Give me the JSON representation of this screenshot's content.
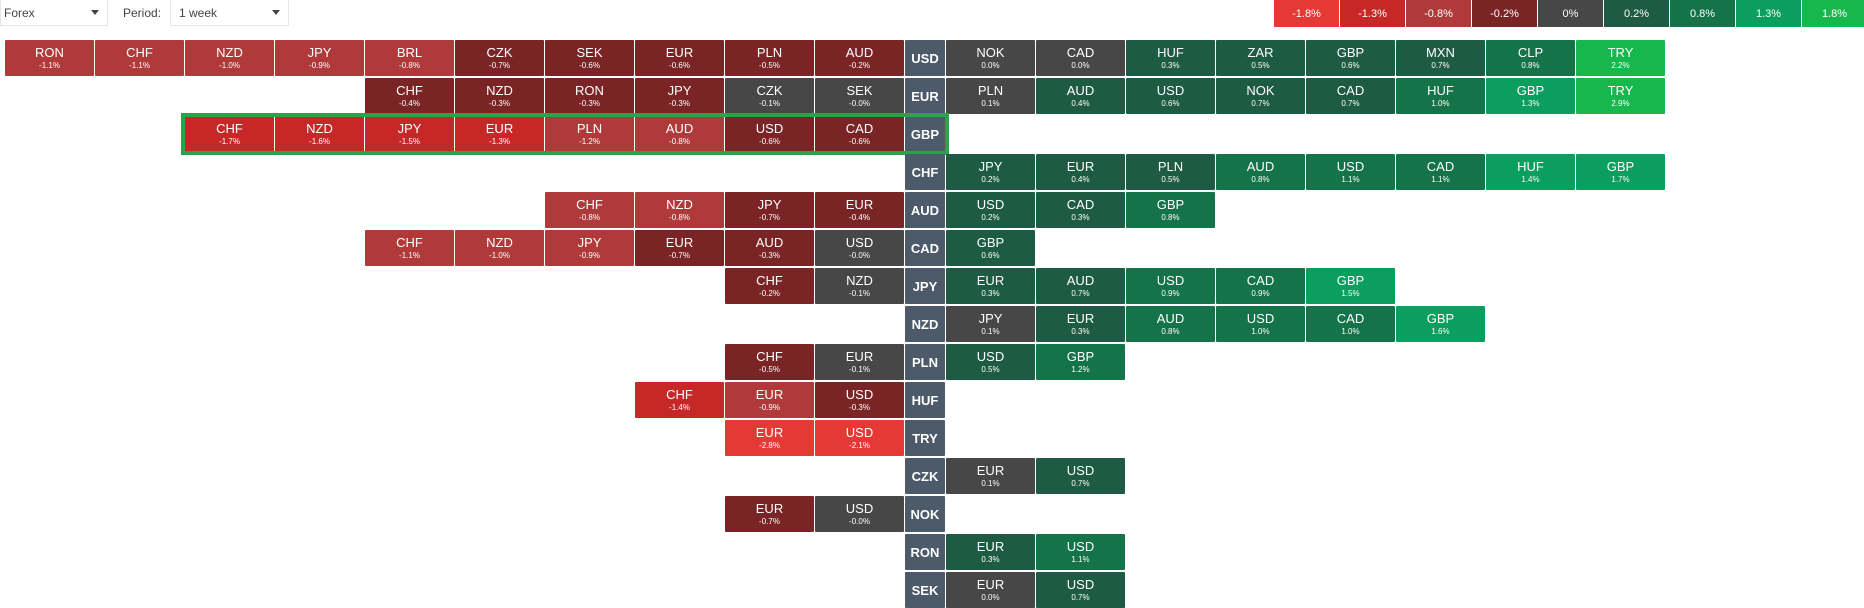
{
  "toolbar": {
    "market_value": "Forex",
    "period_label": "Period:",
    "period_value": "1 week"
  },
  "legend": [
    {
      "label": "-1.8%",
      "color": "#e53935"
    },
    {
      "label": "-1.3%",
      "color": "#c62828"
    },
    {
      "label": "-0.8%",
      "color": "#b03a3a"
    },
    {
      "label": "-0.2%",
      "color": "#7b2426"
    },
    {
      "label": "0%",
      "color": "#474747"
    },
    {
      "label": "0.2%",
      "color": "#1e5b44"
    },
    {
      "label": "0.8%",
      "color": "#157349"
    },
    {
      "label": "1.3%",
      "color": "#0a9e5f"
    },
    {
      "label": "1.8%",
      "color": "#16b84e"
    }
  ],
  "highlighted_row": "GBP",
  "rows": [
    {
      "base": "USD",
      "left": [
        [
          "RON",
          "-1.1%"
        ],
        [
          "CHF",
          "-1.1%"
        ],
        [
          "NZD",
          "-1.0%"
        ],
        [
          "JPY",
          "-0.9%"
        ],
        [
          "BRL",
          "-0.8%"
        ],
        [
          "CZK",
          "-0.7%"
        ],
        [
          "SEK",
          "-0.6%"
        ],
        [
          "EUR",
          "-0.6%"
        ],
        [
          "PLN",
          "-0.5%"
        ],
        [
          "AUD",
          "-0.2%"
        ]
      ],
      "right": [
        [
          "NOK",
          "0.0%"
        ],
        [
          "CAD",
          "0.0%"
        ],
        [
          "HUF",
          "0.3%"
        ],
        [
          "ZAR",
          "0.5%"
        ],
        [
          "GBP",
          "0.6%"
        ],
        [
          "MXN",
          "0.7%"
        ],
        [
          "CLP",
          "0.8%"
        ],
        [
          "TRY",
          "2.2%"
        ]
      ]
    },
    {
      "base": "EUR",
      "left": [
        [
          "CHF",
          "-0.4%"
        ],
        [
          "NZD",
          "-0.3%"
        ],
        [
          "RON",
          "-0.3%"
        ],
        [
          "JPY",
          "-0.3%"
        ],
        [
          "CZK",
          "-0.1%"
        ],
        [
          "SEK",
          "-0.0%"
        ]
      ],
      "right": [
        [
          "PLN",
          "0.1%"
        ],
        [
          "AUD",
          "0.4%"
        ],
        [
          "USD",
          "0.6%"
        ],
        [
          "NOK",
          "0.7%"
        ],
        [
          "CAD",
          "0.7%"
        ],
        [
          "HUF",
          "1.0%"
        ],
        [
          "GBP",
          "1.3%"
        ],
        [
          "TRY",
          "2.9%"
        ]
      ]
    },
    {
      "base": "GBP",
      "left": [
        [
          "CHF",
          "-1.7%"
        ],
        [
          "NZD",
          "-1.6%"
        ],
        [
          "JPY",
          "-1.5%"
        ],
        [
          "EUR",
          "-1.3%"
        ],
        [
          "PLN",
          "-1.2%"
        ],
        [
          "AUD",
          "-0.8%"
        ],
        [
          "USD",
          "-0.6%"
        ],
        [
          "CAD",
          "-0.6%"
        ]
      ],
      "right": []
    },
    {
      "base": "CHF",
      "left": [],
      "right": [
        [
          "JPY",
          "0.2%"
        ],
        [
          "EUR",
          "0.4%"
        ],
        [
          "PLN",
          "0.5%"
        ],
        [
          "AUD",
          "0.8%"
        ],
        [
          "USD",
          "1.1%"
        ],
        [
          "CAD",
          "1.1%"
        ],
        [
          "HUF",
          "1.4%"
        ],
        [
          "GBP",
          "1.7%"
        ]
      ]
    },
    {
      "base": "AUD",
      "left": [
        [
          "CHF",
          "-0.8%"
        ],
        [
          "NZD",
          "-0.8%"
        ],
        [
          "JPY",
          "-0.7%"
        ],
        [
          "EUR",
          "-0.4%"
        ]
      ],
      "right": [
        [
          "USD",
          "0.2%"
        ],
        [
          "CAD",
          "0.3%"
        ],
        [
          "GBP",
          "0.8%"
        ]
      ]
    },
    {
      "base": "CAD",
      "left": [
        [
          "CHF",
          "-1.1%"
        ],
        [
          "NZD",
          "-1.0%"
        ],
        [
          "JPY",
          "-0.9%"
        ],
        [
          "EUR",
          "-0.7%"
        ],
        [
          "AUD",
          "-0.3%"
        ],
        [
          "USD",
          "-0.0%"
        ]
      ],
      "right": [
        [
          "GBP",
          "0.6%"
        ]
      ]
    },
    {
      "base": "JPY",
      "left": [
        [
          "CHF",
          "-0.2%"
        ],
        [
          "NZD",
          "-0.1%"
        ]
      ],
      "right": [
        [
          "EUR",
          "0.3%"
        ],
        [
          "AUD",
          "0.7%"
        ],
        [
          "USD",
          "0.9%"
        ],
        [
          "CAD",
          "0.9%"
        ],
        [
          "GBP",
          "1.5%"
        ]
      ]
    },
    {
      "base": "NZD",
      "left": [],
      "right": [
        [
          "JPY",
          "0.1%"
        ],
        [
          "EUR",
          "0.3%"
        ],
        [
          "AUD",
          "0.8%"
        ],
        [
          "USD",
          "1.0%"
        ],
        [
          "CAD",
          "1.0%"
        ],
        [
          "GBP",
          "1.6%"
        ]
      ]
    },
    {
      "base": "PLN",
      "left": [
        [
          "CHF",
          "-0.5%"
        ],
        [
          "EUR",
          "-0.1%"
        ]
      ],
      "right": [
        [
          "USD",
          "0.5%"
        ],
        [
          "GBP",
          "1.2%"
        ]
      ]
    },
    {
      "base": "HUF",
      "left": [
        [
          "CHF",
          "-1.4%"
        ],
        [
          "EUR",
          "-0.9%"
        ],
        [
          "USD",
          "-0.3%"
        ]
      ],
      "right": []
    },
    {
      "base": "TRY",
      "left": [
        [
          "EUR",
          "-2.8%"
        ],
        [
          "USD",
          "-2.1%"
        ]
      ],
      "right": []
    },
    {
      "base": "CZK",
      "left": [],
      "right": [
        [
          "EUR",
          "0.1%"
        ],
        [
          "USD",
          "0.7%"
        ]
      ]
    },
    {
      "base": "NOK",
      "left": [
        [
          "EUR",
          "-0.7%"
        ],
        [
          "USD",
          "-0.0%"
        ]
      ],
      "right": []
    },
    {
      "base": "RON",
      "left": [],
      "right": [
        [
          "EUR",
          "0.3%"
        ],
        [
          "USD",
          "1.1%"
        ]
      ]
    },
    {
      "base": "SEK",
      "left": [],
      "right": [
        [
          "EUR",
          "0.0%"
        ],
        [
          "USD",
          "0.7%"
        ]
      ]
    }
  ]
}
